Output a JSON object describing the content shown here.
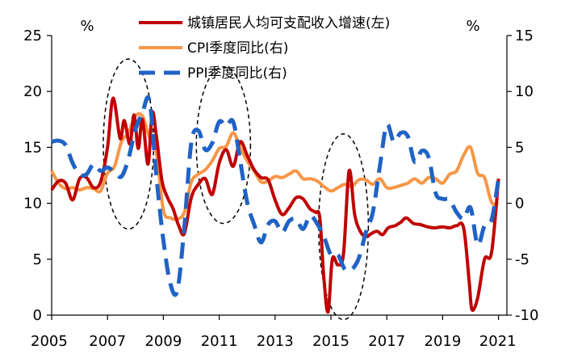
{
  "chart_data": {
    "type": "line",
    "x_unit": "year",
    "xlim": [
      2005,
      2021.3
    ],
    "x_ticks": [
      "2005",
      "2007",
      "2009",
      "2011",
      "2013",
      "2015",
      "2017",
      "2019",
      "2021"
    ],
    "y_left": {
      "unit": "%",
      "lim": [
        0,
        25
      ],
      "ticks": [
        "0",
        "5",
        "10",
        "15",
        "20",
        "25"
      ]
    },
    "y_right": {
      "unit": "%",
      "lim": [
        -10,
        15
      ],
      "ticks": [
        "-10",
        "-5",
        "0",
        "5",
        "10",
        "15"
      ]
    },
    "grid": false,
    "legend": {
      "position": "top-center"
    },
    "annotations": "four dashed ellipses highlight the 2007-2008, 2010-2011, 2015-2016 cycles",
    "series": [
      {
        "name": "城镇居民人均可支配收入增速(左)",
        "axis": "left",
        "color": "#C00000",
        "style": "solid",
        "points": [
          [
            2005.0,
            11.2
          ],
          [
            2005.25,
            12.0
          ],
          [
            2005.5,
            11.8
          ],
          [
            2005.75,
            10.3
          ],
          [
            2006.0,
            12.2
          ],
          [
            2006.25,
            12.3
          ],
          [
            2006.5,
            11.4
          ],
          [
            2006.75,
            11.9
          ],
          [
            2007.0,
            15.0
          ],
          [
            2007.2,
            19.4
          ],
          [
            2007.45,
            15.8
          ],
          [
            2007.6,
            17.4
          ],
          [
            2007.8,
            15.3
          ],
          [
            2007.95,
            17.9
          ],
          [
            2008.1,
            14.9
          ],
          [
            2008.25,
            17.5
          ],
          [
            2008.45,
            13.5
          ],
          [
            2008.6,
            18.1
          ],
          [
            2008.75,
            16.0
          ],
          [
            2008.95,
            12.0
          ],
          [
            2009.15,
            10.5
          ],
          [
            2009.35,
            9.5
          ],
          [
            2009.55,
            8.0
          ],
          [
            2009.75,
            7.3
          ],
          [
            2010.0,
            10.5
          ],
          [
            2010.25,
            11.7
          ],
          [
            2010.5,
            12.2
          ],
          [
            2010.75,
            10.8
          ],
          [
            2011.0,
            13.6
          ],
          [
            2011.25,
            14.8
          ],
          [
            2011.5,
            13.3
          ],
          [
            2011.75,
            15.5
          ],
          [
            2012.0,
            14.3
          ],
          [
            2012.25,
            13.0
          ],
          [
            2012.5,
            12.3
          ],
          [
            2012.75,
            12.1
          ],
          [
            2013.0,
            10.3
          ],
          [
            2013.25,
            9.0
          ],
          [
            2013.5,
            9.6
          ],
          [
            2013.75,
            10.5
          ],
          [
            2014.0,
            10.4
          ],
          [
            2014.25,
            9.5
          ],
          [
            2014.45,
            9.2
          ],
          [
            2014.6,
            8.7
          ],
          [
            2014.75,
            3.2
          ],
          [
            2014.9,
            0.3
          ],
          [
            2015.05,
            5.0
          ],
          [
            2015.25,
            4.5
          ],
          [
            2015.45,
            5.5
          ],
          [
            2015.65,
            12.9
          ],
          [
            2015.85,
            9.0
          ],
          [
            2016.05,
            7.5
          ],
          [
            2016.25,
            7.0
          ],
          [
            2016.45,
            7.3
          ],
          [
            2016.65,
            7.5
          ],
          [
            2016.85,
            7.2
          ],
          [
            2017.05,
            7.8
          ],
          [
            2017.3,
            8.0
          ],
          [
            2017.5,
            8.3
          ],
          [
            2017.7,
            8.7
          ],
          [
            2017.95,
            8.2
          ],
          [
            2018.2,
            8.1
          ],
          [
            2018.45,
            7.9
          ],
          [
            2018.7,
            7.8
          ],
          [
            2019.0,
            7.9
          ],
          [
            2019.25,
            7.8
          ],
          [
            2019.5,
            8.0
          ],
          [
            2019.75,
            7.8
          ],
          [
            2019.95,
            3.0
          ],
          [
            2020.05,
            0.5
          ],
          [
            2020.25,
            1.5
          ],
          [
            2020.5,
            5.0
          ],
          [
            2020.75,
            5.6
          ],
          [
            2021.0,
            12.2
          ]
        ]
      },
      {
        "name": "CPI季度同比(右)",
        "axis": "right",
        "color": "#F79646",
        "style": "solid",
        "points": [
          [
            2005.0,
            2.9
          ],
          [
            2005.25,
            1.8
          ],
          [
            2005.5,
            1.3
          ],
          [
            2005.75,
            1.4
          ],
          [
            2006.0,
            1.2
          ],
          [
            2006.25,
            1.4
          ],
          [
            2006.5,
            1.3
          ],
          [
            2006.75,
            1.1
          ],
          [
            2007.0,
            2.7
          ],
          [
            2007.25,
            3.3
          ],
          [
            2007.5,
            5.5
          ],
          [
            2007.75,
            6.3
          ],
          [
            2008.0,
            7.8
          ],
          [
            2008.25,
            7.8
          ],
          [
            2008.5,
            5.9
          ],
          [
            2008.75,
            4.5
          ],
          [
            2009.0,
            -0.6
          ],
          [
            2009.25,
            -1.3
          ],
          [
            2009.5,
            -1.4
          ],
          [
            2009.75,
            -0.8
          ],
          [
            2010.0,
            1.9
          ],
          [
            2010.25,
            2.6
          ],
          [
            2010.5,
            3.0
          ],
          [
            2010.75,
            3.8
          ],
          [
            2011.0,
            4.9
          ],
          [
            2011.25,
            5.1
          ],
          [
            2011.5,
            6.3
          ],
          [
            2011.75,
            5.0
          ],
          [
            2012.0,
            3.8
          ],
          [
            2012.25,
            2.9
          ],
          [
            2012.5,
            1.9
          ],
          [
            2012.75,
            2.0
          ],
          [
            2013.0,
            2.4
          ],
          [
            2013.25,
            2.3
          ],
          [
            2013.5,
            2.6
          ],
          [
            2013.75,
            2.9
          ],
          [
            2014.0,
            2.2
          ],
          [
            2014.25,
            2.2
          ],
          [
            2014.5,
            2.0
          ],
          [
            2014.75,
            1.5
          ],
          [
            2015.0,
            1.1
          ],
          [
            2015.25,
            1.4
          ],
          [
            2015.5,
            1.7
          ],
          [
            2015.75,
            1.5
          ],
          [
            2016.0,
            2.1
          ],
          [
            2016.25,
            2.1
          ],
          [
            2016.5,
            1.7
          ],
          [
            2016.75,
            2.2
          ],
          [
            2017.0,
            1.4
          ],
          [
            2017.25,
            1.4
          ],
          [
            2017.5,
            1.6
          ],
          [
            2017.75,
            1.8
          ],
          [
            2018.0,
            2.2
          ],
          [
            2018.25,
            1.8
          ],
          [
            2018.5,
            2.3
          ],
          [
            2018.75,
            2.2
          ],
          [
            2019.0,
            1.8
          ],
          [
            2019.25,
            2.6
          ],
          [
            2019.5,
            2.9
          ],
          [
            2019.75,
            4.3
          ],
          [
            2020.0,
            5.0
          ],
          [
            2020.25,
            2.7
          ],
          [
            2020.5,
            2.3
          ],
          [
            2020.75,
            0.1
          ],
          [
            2021.0,
            0.0
          ]
        ]
      },
      {
        "name": "PPI季度同比(右)",
        "axis": "right",
        "color": "#1F63C6",
        "style": "dashed",
        "points": [
          [
            2005.0,
            5.5
          ],
          [
            2005.25,
            5.6
          ],
          [
            2005.5,
            5.2
          ],
          [
            2005.75,
            3.6
          ],
          [
            2006.0,
            2.6
          ],
          [
            2006.25,
            2.6
          ],
          [
            2006.5,
            3.5
          ],
          [
            2006.75,
            2.9
          ],
          [
            2007.0,
            3.2
          ],
          [
            2007.25,
            2.8
          ],
          [
            2007.5,
            2.4
          ],
          [
            2007.75,
            4.0
          ],
          [
            2008.0,
            6.6
          ],
          [
            2008.25,
            8.1
          ],
          [
            2008.5,
            9.2
          ],
          [
            2008.75,
            2.4
          ],
          [
            2009.0,
            -3.3
          ],
          [
            2009.25,
            -7.2
          ],
          [
            2009.5,
            -7.8
          ],
          [
            2009.75,
            -2.1
          ],
          [
            2010.0,
            5.4
          ],
          [
            2010.25,
            6.5
          ],
          [
            2010.5,
            4.8
          ],
          [
            2010.75,
            5.4
          ],
          [
            2011.0,
            7.3
          ],
          [
            2011.25,
            6.9
          ],
          [
            2011.5,
            7.3
          ],
          [
            2011.75,
            3.8
          ],
          [
            2012.0,
            0.1
          ],
          [
            2012.25,
            -1.9
          ],
          [
            2012.5,
            -3.5
          ],
          [
            2012.75,
            -1.9
          ],
          [
            2013.0,
            -1.6
          ],
          [
            2013.25,
            -2.6
          ],
          [
            2013.5,
            -1.6
          ],
          [
            2013.75,
            -1.4
          ],
          [
            2014.0,
            -2.3
          ],
          [
            2014.25,
            -1.1
          ],
          [
            2014.5,
            -1.8
          ],
          [
            2014.75,
            -3.0
          ],
          [
            2015.0,
            -4.6
          ],
          [
            2015.25,
            -4.6
          ],
          [
            2015.5,
            -5.9
          ],
          [
            2015.75,
            -5.9
          ],
          [
            2016.0,
            -4.9
          ],
          [
            2016.25,
            -2.6
          ],
          [
            2016.5,
            -0.8
          ],
          [
            2016.75,
            3.3
          ],
          [
            2017.0,
            7.0
          ],
          [
            2017.25,
            5.5
          ],
          [
            2017.5,
            6.3
          ],
          [
            2017.75,
            6.0
          ],
          [
            2018.0,
            3.7
          ],
          [
            2018.25,
            4.7
          ],
          [
            2018.5,
            4.1
          ],
          [
            2018.75,
            0.9
          ],
          [
            2019.0,
            0.4
          ],
          [
            2019.25,
            0.3
          ],
          [
            2019.5,
            -0.8
          ],
          [
            2019.75,
            -1.4
          ],
          [
            2020.0,
            -0.4
          ],
          [
            2020.25,
            -3.7
          ],
          [
            2020.5,
            -2.0
          ],
          [
            2020.75,
            -1.5
          ],
          [
            2021.0,
            2.2
          ]
        ]
      }
    ]
  }
}
